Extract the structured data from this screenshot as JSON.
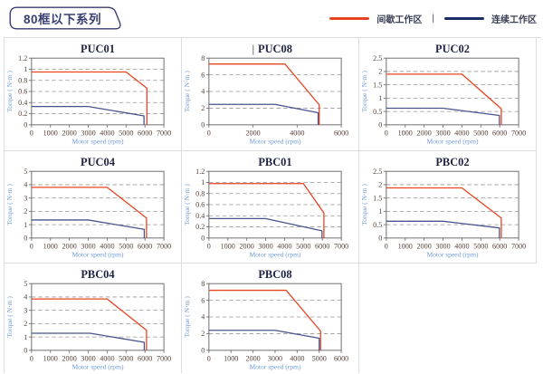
{
  "page": {
    "title": "80框以下系列"
  },
  "legend": {
    "items": [
      {
        "label": "间歇工作区",
        "color": "#e8431f"
      },
      {
        "label": "连续工作区",
        "color": "#1a2f66"
      }
    ],
    "separator": "|"
  },
  "style": {
    "intermittent_color": "#e8431f",
    "continuous_color": "#47558d",
    "tag_border_color": "#383e72"
  },
  "chart_data": [
    {
      "type": "line",
      "title": "PUC01",
      "xlabel": "Motor speed (rpm)",
      "ylabel": "Torque ( N·m )",
      "xlim": [
        0,
        7000
      ],
      "ylim": [
        0,
        1.2
      ],
      "xticks": [
        0,
        1000,
        2000,
        3000,
        4000,
        5000,
        6000,
        7000
      ],
      "yticks": [
        0,
        0.2,
        0.4,
        0.6,
        0.8,
        1,
        1.2
      ],
      "grid": "dashed-horizontal",
      "legend_position": "none",
      "series": [
        {
          "name": "间歇工作区",
          "color": "#e8431f",
          "points": [
            [
              0,
              0.95
            ],
            [
              5000,
              0.95
            ],
            [
              6100,
              0.66
            ],
            [
              6100,
              0
            ]
          ]
        },
        {
          "name": "连续工作区",
          "color": "#47558d",
          "points": [
            [
              0,
              0.33
            ],
            [
              3000,
              0.33
            ],
            [
              5950,
              0.16
            ],
            [
              5950,
              0
            ]
          ]
        }
      ]
    },
    {
      "type": "line",
      "title": "PUC08",
      "caret": "|",
      "xlabel": "Motor speed (rpm)",
      "ylabel": "Torque ( N·m )",
      "xlim": [
        0,
        6000
      ],
      "ylim": [
        0,
        8
      ],
      "xticks": [
        0,
        2000,
        4000,
        6000
      ],
      "yticks": [
        0,
        2,
        4,
        6,
        8
      ],
      "grid": "dashed-horizontal",
      "legend_position": "none",
      "series": [
        {
          "name": "间歇工作区",
          "color": "#e8431f",
          "points": [
            [
              0,
              7.3
            ],
            [
              3450,
              7.3
            ],
            [
              5000,
              2.4
            ],
            [
              5000,
              0
            ]
          ]
        },
        {
          "name": "连续工作区",
          "color": "#47558d",
          "points": [
            [
              0,
              2.45
            ],
            [
              3000,
              2.45
            ],
            [
              4950,
              1.45
            ],
            [
              4950,
              0
            ]
          ]
        }
      ]
    },
    {
      "type": "line",
      "title": "PUC02",
      "xlabel": "Motor speed (rpm)",
      "ylabel": "Torque ( N·m )",
      "xlim": [
        0,
        7000
      ],
      "ylim": [
        0,
        2.5
      ],
      "xticks": [
        0,
        1000,
        2000,
        3000,
        4000,
        5000,
        6000,
        7000
      ],
      "yticks": [
        0,
        0.5,
        1,
        1.5,
        2,
        2.5
      ],
      "grid": "dashed-horizontal",
      "legend_position": "none",
      "series": [
        {
          "name": "间歇工作区",
          "color": "#e8431f",
          "points": [
            [
              0,
              1.9
            ],
            [
              4000,
              1.9
            ],
            [
              6080,
              0.6
            ],
            [
              6080,
              0
            ]
          ]
        },
        {
          "name": "连续工作区",
          "color": "#47558d",
          "points": [
            [
              0,
              0.62
            ],
            [
              3000,
              0.62
            ],
            [
              5980,
              0.35
            ],
            [
              5980,
              0
            ]
          ]
        }
      ]
    },
    {
      "type": "line",
      "title": "PUC04",
      "xlabel": "Motor speed (rpm)",
      "ylabel": "Torque ( N·m )",
      "xlim": [
        0,
        7000
      ],
      "ylim": [
        0,
        5
      ],
      "xticks": [
        0,
        1000,
        2000,
        3000,
        4000,
        5000,
        6000,
        7000
      ],
      "yticks": [
        0,
        1,
        2,
        3,
        4,
        5
      ],
      "grid": "dashed-horizontal",
      "legend_position": "none",
      "series": [
        {
          "name": "间歇工作区",
          "color": "#e8431f",
          "points": [
            [
              0,
              3.8
            ],
            [
              4000,
              3.8
            ],
            [
              6080,
              1.5
            ],
            [
              6080,
              0
            ]
          ]
        },
        {
          "name": "连续工作区",
          "color": "#47558d",
          "points": [
            [
              0,
              1.35
            ],
            [
              3000,
              1.35
            ],
            [
              5960,
              0.65
            ],
            [
              5960,
              0
            ]
          ]
        }
      ]
    },
    {
      "type": "line",
      "title": "PBC01",
      "xlabel": "Motor speed (rpm)",
      "ylabel": "Torque ( N·m )",
      "xlim": [
        0,
        7000
      ],
      "ylim": [
        0,
        1.2
      ],
      "xticks": [
        0,
        1000,
        2000,
        3000,
        4000,
        5000,
        6000,
        7000
      ],
      "yticks": [
        0,
        0.2,
        0.4,
        0.6,
        0.8,
        1,
        1.2
      ],
      "grid": "dashed-horizontal",
      "legend_position": "none",
      "series": [
        {
          "name": "间歇工作区",
          "color": "#e8431f",
          "points": [
            [
              0,
              0.98
            ],
            [
              5000,
              0.98
            ],
            [
              6080,
              0.45
            ],
            [
              6080,
              0
            ]
          ]
        },
        {
          "name": "连续工作区",
          "color": "#47558d",
          "points": [
            [
              0,
              0.35
            ],
            [
              3000,
              0.35
            ],
            [
              5980,
              0.13
            ],
            [
              5980,
              0
            ]
          ]
        }
      ]
    },
    {
      "type": "line",
      "title": "PBC02",
      "xlabel": "Motor speed (rpm)",
      "ylabel": "Torque ( N·m )",
      "xlim": [
        0,
        7000
      ],
      "ylim": [
        0,
        2.5
      ],
      "xticks": [
        0,
        1000,
        2000,
        3000,
        4000,
        5000,
        6000,
        7000
      ],
      "yticks": [
        0,
        0.5,
        1,
        1.5,
        2,
        2.5
      ],
      "grid": "dashed-horizontal",
      "legend_position": "none",
      "series": [
        {
          "name": "间歇工作区",
          "color": "#e8431f",
          "points": [
            [
              0,
              1.88
            ],
            [
              4000,
              1.88
            ],
            [
              6080,
              0.75
            ],
            [
              6080,
              0
            ]
          ]
        },
        {
          "name": "连续工作区",
          "color": "#47558d",
          "points": [
            [
              0,
              0.63
            ],
            [
              3000,
              0.63
            ],
            [
              5980,
              0.38
            ],
            [
              5980,
              0
            ]
          ]
        }
      ]
    },
    {
      "type": "line",
      "title": "PBC04",
      "xlabel": "Motor speed (rpm)",
      "ylabel": "Torque ( N·m )",
      "xlim": [
        0,
        7000
      ],
      "ylim": [
        0,
        5
      ],
      "xticks": [
        0,
        1000,
        2000,
        3000,
        4000,
        5000,
        6000,
        7000
      ],
      "yticks": [
        0,
        1,
        2,
        3,
        4,
        5
      ],
      "grid": "dashed-horizontal",
      "legend_position": "none",
      "series": [
        {
          "name": "间歇工作区",
          "color": "#e8431f",
          "points": [
            [
              0,
              3.85
            ],
            [
              4000,
              3.85
            ],
            [
              6080,
              1.5
            ],
            [
              6080,
              0
            ]
          ]
        },
        {
          "name": "连续工作区",
          "color": "#47558d",
          "points": [
            [
              0,
              1.28
            ],
            [
              3100,
              1.28
            ],
            [
              5960,
              0.6
            ],
            [
              5960,
              0
            ]
          ]
        }
      ]
    },
    {
      "type": "line",
      "title": "PBC08",
      "xlabel": "Motor speed (rpm)",
      "ylabel": "Torque ( N·m )",
      "xlim": [
        0,
        6000
      ],
      "ylim": [
        0,
        8
      ],
      "xticks": [
        0,
        1000,
        2000,
        3000,
        4000,
        5000,
        6000
      ],
      "yticks": [
        0,
        2,
        4,
        6,
        8
      ],
      "grid": "dashed-horizontal",
      "legend_position": "none",
      "series": [
        {
          "name": "间歇工作区",
          "color": "#e8431f",
          "points": [
            [
              0,
              7.2
            ],
            [
              3500,
              7.2
            ],
            [
              5060,
              2.3
            ],
            [
              5060,
              0
            ]
          ]
        },
        {
          "name": "连续工作区",
          "color": "#47558d",
          "points": [
            [
              0,
              2.4
            ],
            [
              3000,
              2.4
            ],
            [
              5000,
              1.45
            ],
            [
              5000,
              0
            ]
          ]
        }
      ]
    }
  ]
}
